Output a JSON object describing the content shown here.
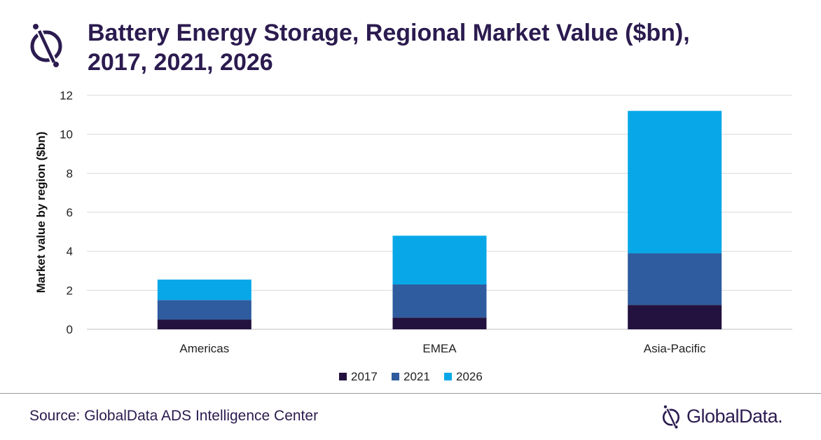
{
  "header": {
    "title": "Battery Energy Storage, Regional Market Value ($bn), 2017, 2021, 2026"
  },
  "footer": {
    "source": "Source: GlobalData ADS Intelligence Center",
    "brand": "GlobalData."
  },
  "icons": {
    "logo": "globaldata-logo-icon"
  },
  "chart_data": {
    "type": "bar",
    "stacked": true,
    "categories": [
      "Americas",
      "EMEA",
      "Asia-Pacific"
    ],
    "series": [
      {
        "name": "2017",
        "color": "#23123f",
        "values": [
          0.5,
          0.6,
          1.25
        ]
      },
      {
        "name": "2021",
        "color": "#2e5c9e",
        "values": [
          1.0,
          1.7,
          2.65
        ]
      },
      {
        "name": "2026",
        "color": "#08a8e8",
        "values": [
          1.05,
          2.5,
          7.3
        ]
      }
    ],
    "ylabel": "Market value by region ($bn)",
    "xlabel": "",
    "ylim": [
      0,
      12
    ],
    "yticks": [
      0,
      2,
      4,
      6,
      8,
      10,
      12
    ],
    "grid": true,
    "legend": "bottom"
  }
}
